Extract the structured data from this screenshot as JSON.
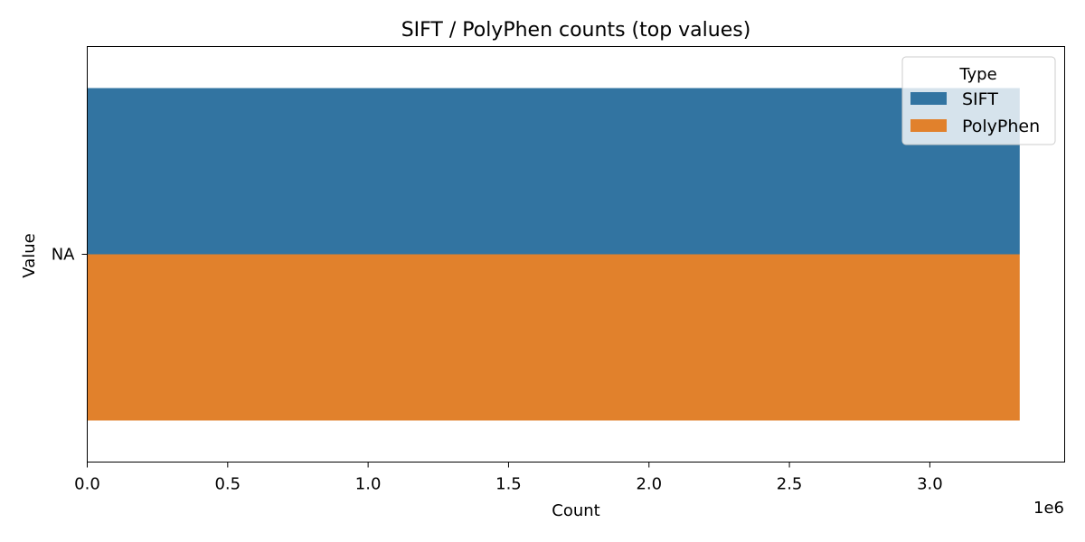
{
  "chart_data": {
    "type": "bar",
    "orientation": "horizontal",
    "title": "SIFT / PolyPhen counts (top values)",
    "xlabel": "Count",
    "ylabel": "Value",
    "x_scale_label": "1e6",
    "categories": [
      "NA"
    ],
    "series": [
      {
        "name": "SIFT",
        "values": [
          3320000
        ],
        "color": "#3274a1"
      },
      {
        "name": "PolyPhen",
        "values": [
          3320000
        ],
        "color": "#e1812c"
      }
    ],
    "xlim": [
      0,
      3480000
    ],
    "xticks": [
      0,
      500000,
      1000000,
      1500000,
      2000000,
      2500000,
      3000000
    ],
    "xtick_labels": [
      "0.0",
      "0.5",
      "1.0",
      "1.5",
      "2.0",
      "2.5",
      "3.0"
    ],
    "grid": false,
    "legend": {
      "title": "Type",
      "position": "top-right"
    }
  }
}
